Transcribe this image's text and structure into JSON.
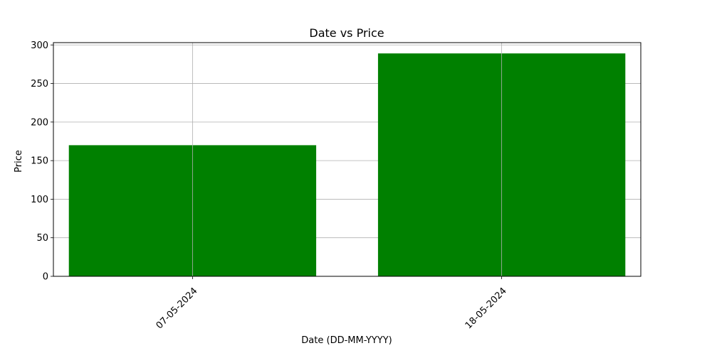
{
  "chart_data": {
    "type": "bar",
    "title": "Date vs Price",
    "xlabel": "Date (DD-MM-YYYY)",
    "ylabel": "Price",
    "categories": [
      "07-05-2024",
      "18-05-2024"
    ],
    "values": [
      170,
      289
    ],
    "ylim": [
      0,
      303
    ],
    "yticks": [
      0,
      50,
      100,
      150,
      200,
      250,
      300
    ],
    "grid": true,
    "bar_color": "#008000"
  }
}
